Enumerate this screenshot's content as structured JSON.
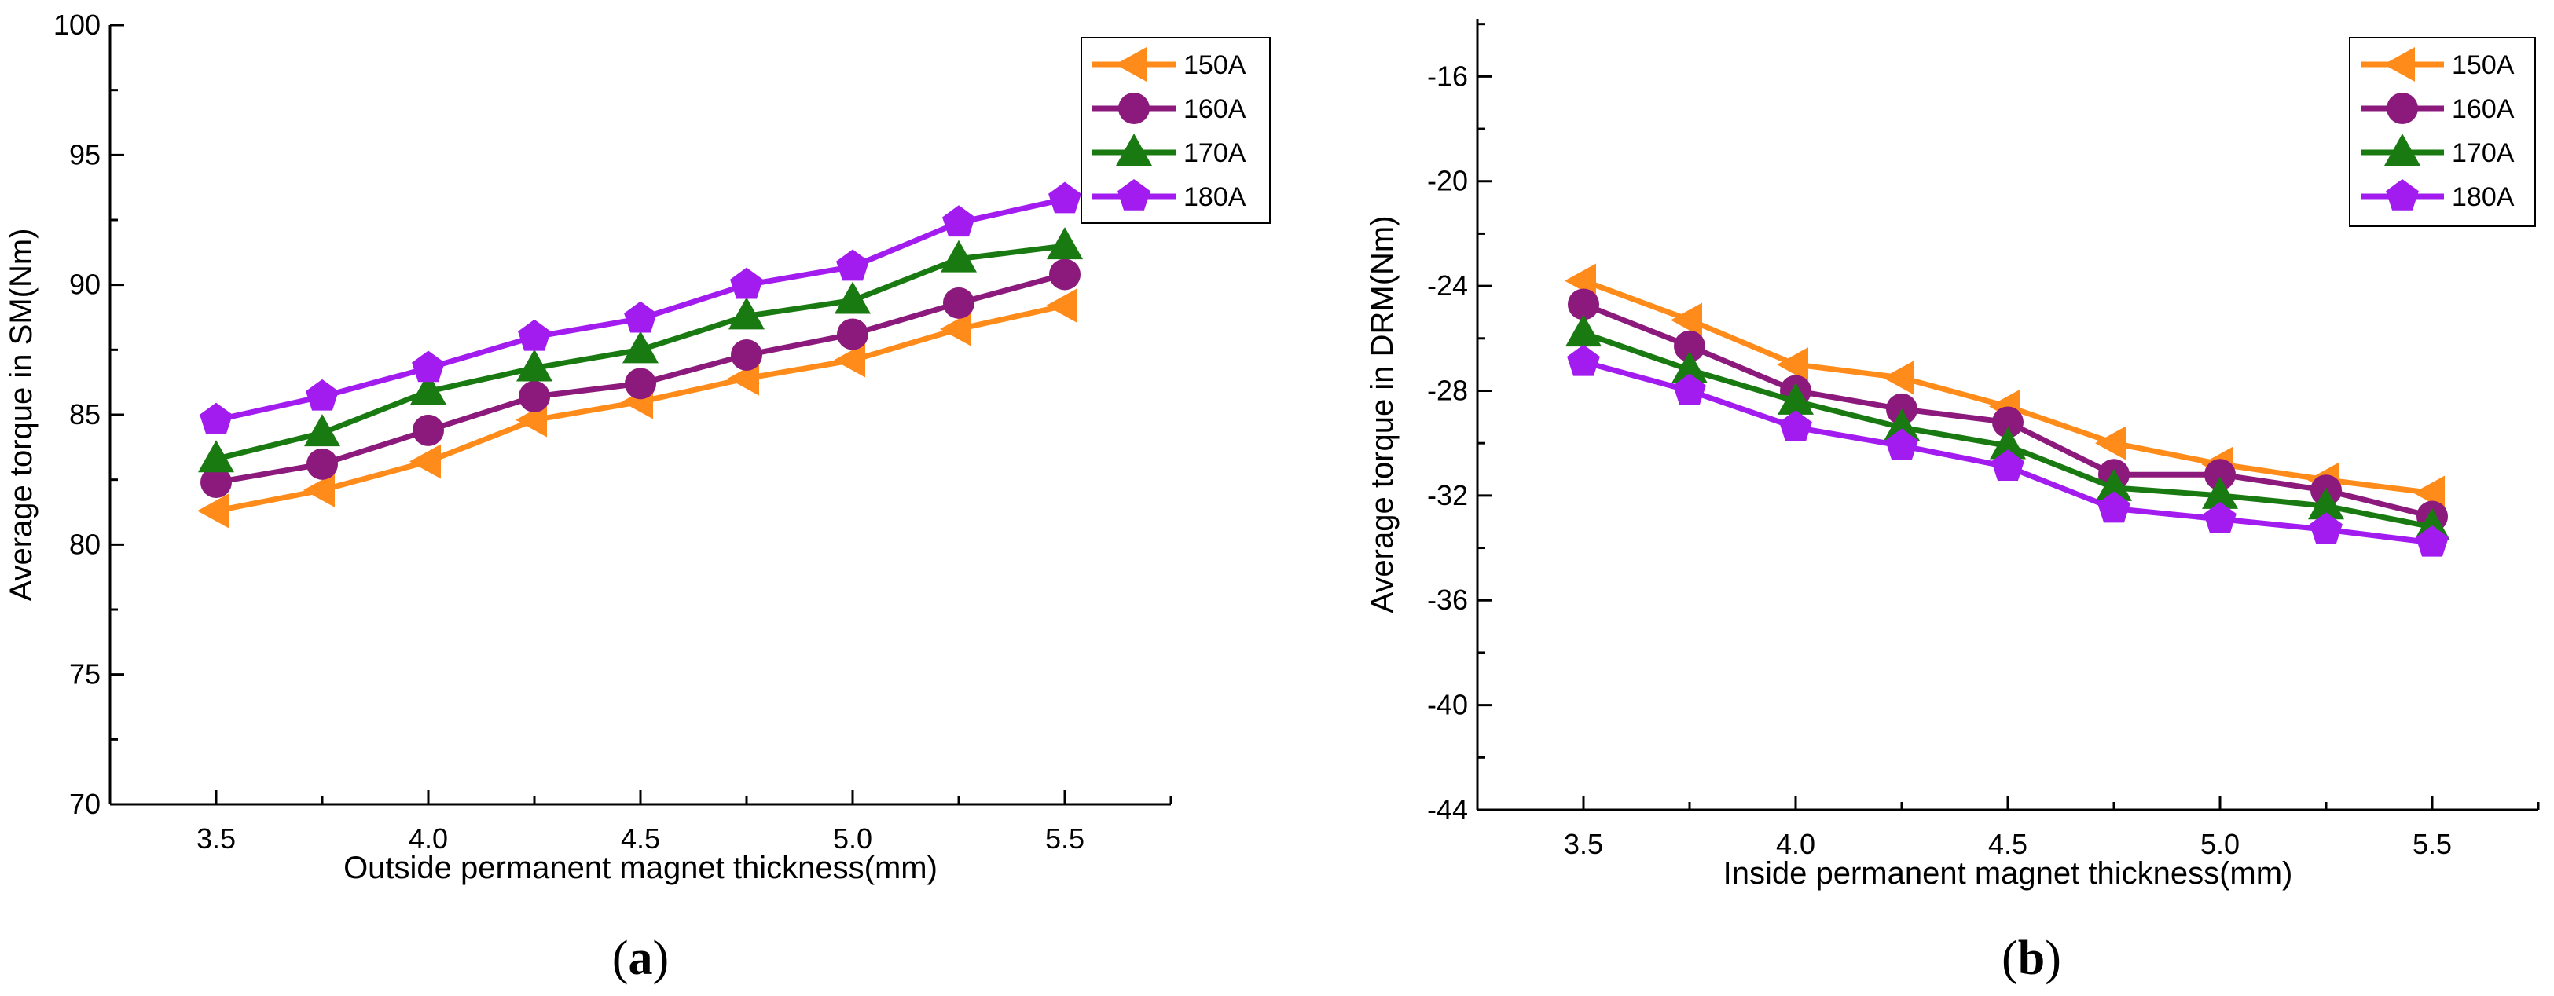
{
  "chart_data": [
    {
      "id": "a",
      "type": "line",
      "caption_open": "(",
      "caption_letter": "a",
      "caption_close": ")",
      "xlabel": "Outside permanent magnet thickness(mm)",
      "ylabel": "Average torque in SM(Nm)",
      "xlim": [
        3.25,
        5.75
      ],
      "ylim": [
        70,
        100
      ],
      "xticks": [
        3.5,
        4.0,
        4.5,
        5.0,
        5.5
      ],
      "xtick_labels": [
        "3.5",
        "4.0",
        "4.5",
        "5.0",
        "5.5"
      ],
      "yticks": [
        70,
        75,
        80,
        85,
        90,
        95,
        100
      ],
      "ytick_labels": [
        "70",
        "75",
        "80",
        "85",
        "90",
        "95",
        "100"
      ],
      "legend_position": "top-right",
      "x": [
        3.5,
        3.75,
        4.0,
        4.25,
        4.5,
        4.75,
        5.0,
        5.25,
        5.5
      ],
      "series": [
        {
          "name": "150A",
          "color": "#ff8c1a",
          "marker": "triangle-left",
          "values": [
            81.3,
            82.1,
            83.2,
            84.8,
            85.5,
            86.4,
            87.1,
            88.3,
            89.2
          ]
        },
        {
          "name": "160A",
          "color": "#8b1a7c",
          "marker": "circle",
          "values": [
            82.4,
            83.1,
            84.4,
            85.7,
            86.2,
            87.3,
            88.1,
            89.3,
            90.4
          ]
        },
        {
          "name": "170A",
          "color": "#1a7a12",
          "marker": "triangle-up",
          "values": [
            83.3,
            84.3,
            85.9,
            86.8,
            87.5,
            88.8,
            89.4,
            91.0,
            91.5
          ]
        },
        {
          "name": "180A",
          "color": "#a21cf0",
          "marker": "pentagon",
          "values": [
            84.8,
            85.7,
            86.8,
            88.0,
            88.7,
            90.0,
            90.7,
            92.4,
            93.3
          ]
        }
      ]
    },
    {
      "id": "b",
      "type": "line",
      "caption_open": "(",
      "caption_letter": "b",
      "caption_close": ")",
      "xlabel": "Inside permanent magnet thickness(mm)",
      "ylabel": "Average torque in DRM(Nm)",
      "xlim": [
        3.25,
        5.75
      ],
      "ylim": [
        -44,
        -13.8
      ],
      "xticks": [
        3.5,
        4.0,
        4.5,
        5.0,
        5.5
      ],
      "xtick_labels": [
        "3.5",
        "4.0",
        "4.5",
        "5.0",
        "5.5"
      ],
      "yticks": [
        -44,
        -40,
        -36,
        -32,
        -28,
        -24,
        -20,
        -16
      ],
      "ytick_labels": [
        "-44",
        "-40",
        "-36",
        "-32",
        "-28",
        "-24",
        "-20",
        "-16"
      ],
      "legend_position": "top-right",
      "x": [
        3.5,
        3.75,
        4.0,
        4.25,
        4.5,
        4.75,
        5.0,
        5.25,
        5.5
      ],
      "series": [
        {
          "name": "150A",
          "color": "#ff8c1a",
          "marker": "triangle-left",
          "values": [
            -23.8,
            -25.3,
            -27.0,
            -27.5,
            -28.6,
            -30.0,
            -30.8,
            -31.4,
            -31.9
          ]
        },
        {
          "name": "160A",
          "color": "#8b1a7c",
          "marker": "circle",
          "values": [
            -24.7,
            -26.3,
            -28.0,
            -28.7,
            -29.2,
            -31.2,
            -31.2,
            -31.8,
            -32.8
          ]
        },
        {
          "name": "170A",
          "color": "#1a7a12",
          "marker": "triangle-up",
          "values": [
            -25.8,
            -27.2,
            -28.4,
            -29.4,
            -30.1,
            -31.7,
            -32.0,
            -32.4,
            -33.2
          ]
        },
        {
          "name": "180A",
          "color": "#a21cf0",
          "marker": "pentagon",
          "values": [
            -26.9,
            -28.0,
            -29.4,
            -30.1,
            -30.9,
            -32.5,
            -32.9,
            -33.3,
            -33.8
          ]
        }
      ]
    }
  ]
}
